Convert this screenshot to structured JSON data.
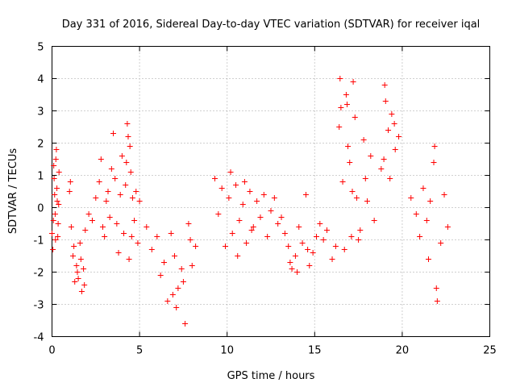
{
  "chart_data": {
    "type": "scatter",
    "title": "Day 331 of 2016, Sidereal Day-to-day VTEC variation (SDTVAR) for receiver iqal",
    "xlabel": "GPS time / hours",
    "ylabel": "SDTVAR / TECUs",
    "xlim": [
      0,
      25
    ],
    "ylim": [
      -4,
      5
    ],
    "x_ticks": [
      "0",
      "5",
      "10",
      "15",
      "20",
      "25"
    ],
    "y_ticks": [
      "-4",
      "-3",
      "-2",
      "-1",
      "0",
      "1",
      "2",
      "3",
      "4",
      "5"
    ],
    "grid": true,
    "marker": "+",
    "series": [
      {
        "name": "SDTVAR",
        "color": "#ff0000",
        "x": [
          0.0,
          0.1,
          0.15,
          0.2,
          0.25,
          0.3,
          0.35,
          0.4,
          0.05,
          0.12,
          0.18,
          0.22,
          0.28,
          0.33,
          0.38,
          0.08,
          1.0,
          1.1,
          1.2,
          1.3,
          1.4,
          1.5,
          1.6,
          1.7,
          1.8,
          1.9,
          1.05,
          1.25,
          1.45,
          1.65,
          1.85,
          2.1,
          2.3,
          2.5,
          2.7,
          2.8,
          2.9,
          3.0,
          3.1,
          3.2,
          3.3,
          3.4,
          3.5,
          3.6,
          3.7,
          3.8,
          3.9,
          4.0,
          4.1,
          4.2,
          4.3,
          4.4,
          4.5,
          4.6,
          4.7,
          4.8,
          4.9,
          5.0,
          4.35,
          4.45,
          4.55,
          4.25,
          5.4,
          5.7,
          6.0,
          6.2,
          6.4,
          6.6,
          6.8,
          7.0,
          7.2,
          7.4,
          7.6,
          7.8,
          8.0,
          8.2,
          7.1,
          7.5,
          7.9,
          6.9,
          9.3,
          9.5,
          9.7,
          9.9,
          10.1,
          10.3,
          10.5,
          10.7,
          10.9,
          11.1,
          11.3,
          11.5,
          11.7,
          11.9,
          12.1,
          12.3,
          12.5,
          12.7,
          12.9,
          10.2,
          10.6,
          11.0,
          11.4,
          13.1,
          13.3,
          13.5,
          13.7,
          13.9,
          14.1,
          14.3,
          14.5,
          14.7,
          14.9,
          15.1,
          15.3,
          15.5,
          15.7,
          13.6,
          14.0,
          14.6,
          16.0,
          16.2,
          16.4,
          16.6,
          16.8,
          17.0,
          17.2,
          17.4,
          17.6,
          17.8,
          18.0,
          18.2,
          18.4,
          16.5,
          16.7,
          16.9,
          17.1,
          17.3,
          16.45,
          16.85,
          17.15,
          17.5,
          17.9,
          18.8,
          19.0,
          19.2,
          19.4,
          19.6,
          19.8,
          19.05,
          19.3,
          19.55,
          18.95,
          20.5,
          20.8,
          21.0,
          21.2,
          21.4,
          21.6,
          21.8,
          22.0,
          22.2,
          22.4,
          22.6,
          21.85,
          21.95,
          21.5
        ],
        "y": [
          -0.8,
          1.3,
          0.4,
          -1.0,
          1.8,
          0.2,
          -0.5,
          1.1,
          -1.3,
          0.9,
          -0.2,
          1.5,
          0.6,
          -0.9,
          0.1,
          -0.4,
          0.5,
          -0.6,
          -1.5,
          -2.3,
          -1.8,
          -2.2,
          -1.1,
          -2.6,
          -1.9,
          -0.7,
          0.8,
          -1.2,
          -2.0,
          -1.6,
          -2.4,
          -0.2,
          -0.4,
          0.3,
          0.8,
          1.5,
          -0.6,
          -0.9,
          0.2,
          0.5,
          -0.3,
          1.2,
          2.3,
          0.9,
          -0.5,
          -1.4,
          0.4,
          1.6,
          -0.8,
          0.7,
          2.6,
          -1.6,
          1.1,
          0.3,
          -0.4,
          0.5,
          -1.1,
          0.2,
          2.2,
          1.9,
          -0.9,
          1.4,
          -0.6,
          -1.3,
          -0.9,
          -2.1,
          -1.7,
          -2.9,
          -0.8,
          -1.5,
          -2.5,
          -1.9,
          -3.6,
          -0.5,
          -1.8,
          -1.2,
          -3.1,
          -2.3,
          -1.0,
          -2.7,
          0.9,
          -0.2,
          0.6,
          -1.2,
          0.3,
          -0.8,
          0.7,
          -0.4,
          0.1,
          -1.1,
          0.5,
          -0.6,
          0.2,
          -0.3,
          0.4,
          -0.9,
          -0.1,
          0.3,
          -0.5,
          1.1,
          -1.5,
          0.8,
          -0.7,
          -0.3,
          -0.8,
          -1.2,
          -1.9,
          -1.5,
          -0.6,
          -1.1,
          0.4,
          -1.8,
          -1.4,
          -0.9,
          -0.5,
          -1.0,
          -0.7,
          -1.7,
          -2.0,
          -1.3,
          -1.6,
          -1.2,
          2.5,
          0.8,
          3.5,
          1.4,
          3.9,
          0.3,
          -0.7,
          2.1,
          0.2,
          1.6,
          -0.4,
          3.1,
          -1.3,
          1.9,
          -0.9,
          2.8,
          4.0,
          3.2,
          0.5,
          -1.0,
          0.9,
          1.2,
          3.8,
          2.4,
          2.9,
          1.8,
          2.2,
          3.3,
          0.9,
          2.6,
          1.5,
          0.3,
          -0.2,
          -0.9,
          0.6,
          -0.4,
          0.2,
          1.4,
          -2.9,
          -1.1,
          0.4,
          -0.6,
          1.9,
          -2.5,
          -1.6
        ]
      }
    ]
  }
}
